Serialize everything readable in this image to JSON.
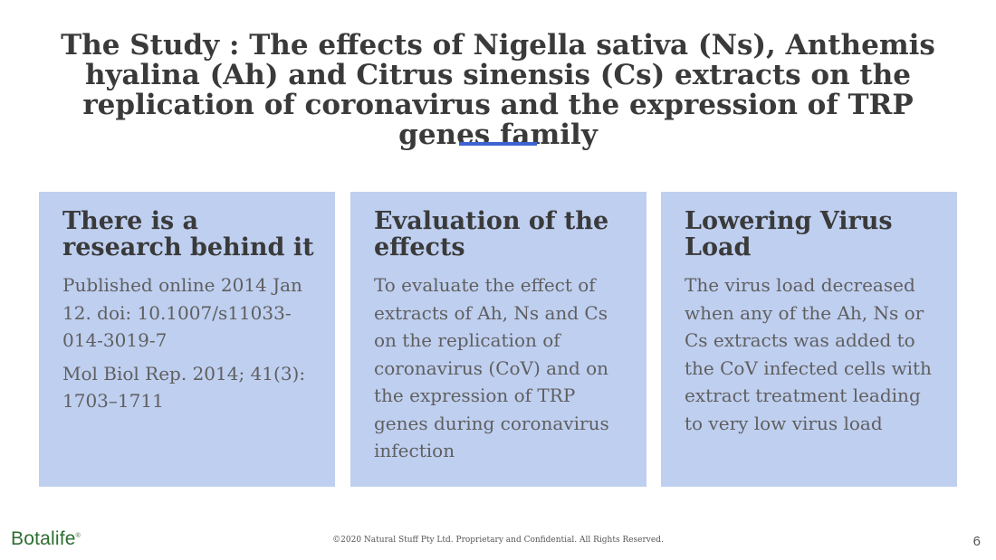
{
  "slide": {
    "title": "The Study : The effects of Nigella sativa (Ns), Anthemis hyalina (Ah) and Citrus sinensis (Cs) extracts on the replication of coronavirus and the expression of TRP genes family"
  },
  "cards": [
    {
      "heading": "There is a research behind it",
      "paragraphs": [
        "Published online 2014 Jan 12. doi: 10.1007/s11033-014-3019-7",
        "Mol Biol Rep. 2014; 41(3): 1703–1711"
      ]
    },
    {
      "heading": "Evaluation of the effects",
      "paragraphs": [
        "To evaluate the effect of extracts of Ah, Ns and Cs on the replication of coronavirus (CoV) and on the expression of TRP genes during coronavirus infection"
      ]
    },
    {
      "heading": "Lowering Virus Load",
      "paragraphs": [
        "The virus load decreased when any of the Ah, Ns or Cs extracts was added to the CoV infected cells with extract treatment leading to very low virus load"
      ]
    }
  ],
  "footer": {
    "logo_text": "Botalife",
    "logo_mark": "®",
    "copyright": "©2020 Natural Stuff Pty Ltd. Proprietary and Confidential. All Rights Reserved.",
    "page_number": "6"
  },
  "colors": {
    "accent": "#3d63d1",
    "card_background": "#bfcff0",
    "heading_text": "#3a3a3a",
    "body_text": "#5f5f5f",
    "logo": "#2e6e32"
  }
}
